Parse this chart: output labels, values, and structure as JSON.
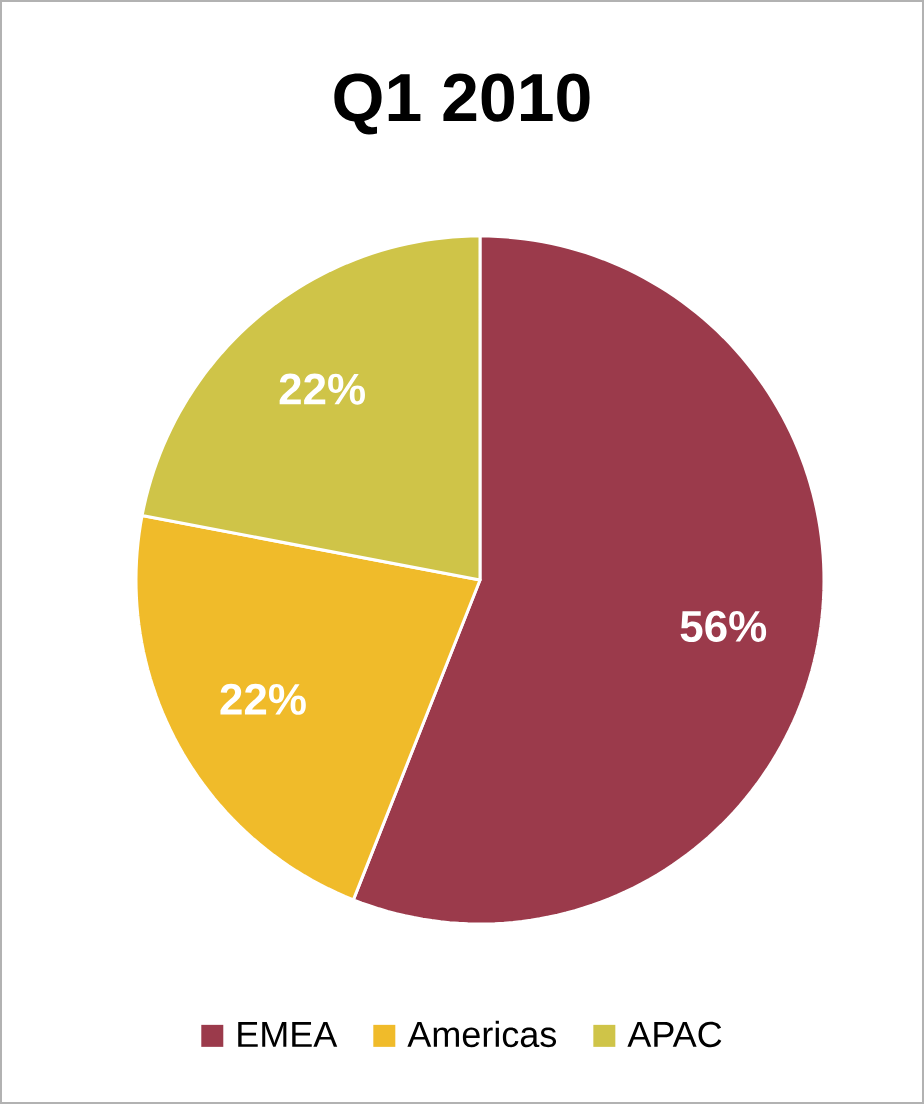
{
  "chart_data": {
    "type": "pie",
    "title": "Q1 2010",
    "categories": [
      "EMEA",
      "Americas",
      "APAC"
    ],
    "values": [
      56,
      22,
      22
    ],
    "colors": [
      "#9b3a4b",
      "#f0bb2a",
      "#cfc448"
    ],
    "value_labels": [
      "56%",
      "22%",
      "22%"
    ],
    "legend": "bottom"
  }
}
